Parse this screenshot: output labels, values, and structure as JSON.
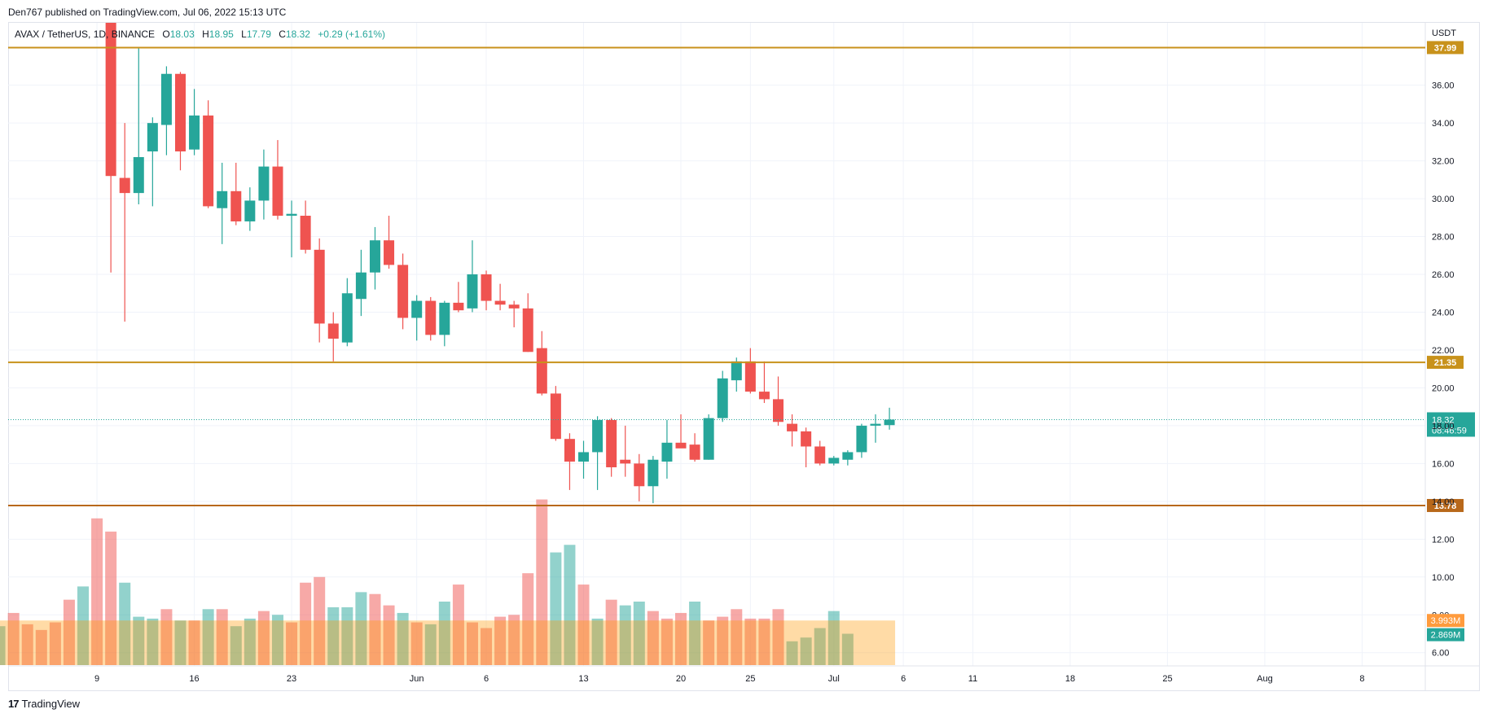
{
  "header": {
    "publisher_text": "Den767 published on TradingView.com, Jul 06, 2022 15:13 UTC"
  },
  "legend": {
    "symbol": "AVAX / TetherUS, 1D, BINANCE",
    "open_label": "O",
    "open": "18.03",
    "high_label": "H",
    "high": "18.95",
    "low_label": "L",
    "low": "17.79",
    "close_label": "C",
    "close": "18.32",
    "change": "+0.29 (+1.61%)"
  },
  "footer": {
    "brand": "TradingView",
    "logo_mark": "17"
  },
  "chart_data": {
    "type": "candlestick",
    "currency": "USDT",
    "ylim": [
      5.3,
      39.3
    ],
    "y_ticks": [
      "6.00",
      "8.00",
      "10.00",
      "12.00",
      "14.00",
      "16.00",
      "18.00",
      "20.00",
      "22.00",
      "24.00",
      "26.00",
      "28.00",
      "30.00",
      "32.00",
      "34.00",
      "36.00"
    ],
    "x_ticks": [
      {
        "label": "9",
        "day": 9
      },
      {
        "label": "16",
        "day": 16
      },
      {
        "label": "23",
        "day": 23
      },
      {
        "label": "Jun",
        "day": 32
      },
      {
        "label": "6",
        "day": 37
      },
      {
        "label": "13",
        "day": 44
      },
      {
        "label": "20",
        "day": 51
      },
      {
        "label": "25",
        "day": 56
      },
      {
        "label": "Jul",
        "day": 62
      },
      {
        "label": "6",
        "day": 67
      },
      {
        "label": "11",
        "day": 72
      },
      {
        "label": "18",
        "day": 79
      },
      {
        "label": "25",
        "day": 86
      },
      {
        "label": "Aug",
        "day": 93
      },
      {
        "label": "8",
        "day": 100
      }
    ],
    "horizontal_levels": [
      {
        "value": 37.99,
        "label": "37.99",
        "color": "#c8921b"
      },
      {
        "value": 21.35,
        "label": "21.35",
        "color": "#c8921b"
      },
      {
        "value": 13.78,
        "label": "13.78",
        "color": "#b8681b"
      }
    ],
    "current_price": {
      "value": 18.32,
      "label": "18.32",
      "countdown": "08:46:59",
      "color": "#26a69a"
    },
    "volume_labels": [
      {
        "label": "3.993M",
        "color": "#ff9b3d",
        "level": 7.7
      },
      {
        "label": "2.869M",
        "color": "#26a69a",
        "level": 6.95
      }
    ],
    "candles": [
      {
        "day": 10,
        "o": 39.3,
        "h": 39.3,
        "l": 26.1,
        "c": 31.2
      },
      {
        "day": 11,
        "o": 31.1,
        "h": 34.0,
        "l": 23.5,
        "c": 30.3
      },
      {
        "day": 12,
        "o": 30.3,
        "h": 38.0,
        "l": 29.7,
        "c": 32.2
      },
      {
        "day": 13,
        "o": 32.5,
        "h": 34.3,
        "l": 29.6,
        "c": 34.0
      },
      {
        "day": 14,
        "o": 33.9,
        "h": 37.0,
        "l": 32.3,
        "c": 36.6
      },
      {
        "day": 15,
        "o": 36.6,
        "h": 36.7,
        "l": 31.5,
        "c": 32.5
      },
      {
        "day": 16,
        "o": 32.6,
        "h": 35.8,
        "l": 32.3,
        "c": 34.4
      },
      {
        "day": 17,
        "o": 34.4,
        "h": 35.2,
        "l": 29.5,
        "c": 29.6
      },
      {
        "day": 18,
        "o": 29.5,
        "h": 31.9,
        "l": 27.6,
        "c": 30.4
      },
      {
        "day": 19,
        "o": 30.4,
        "h": 31.9,
        "l": 28.6,
        "c": 28.8
      },
      {
        "day": 20,
        "o": 28.8,
        "h": 30.6,
        "l": 28.3,
        "c": 29.9
      },
      {
        "day": 21,
        "o": 29.9,
        "h": 32.6,
        "l": 28.9,
        "c": 31.7
      },
      {
        "day": 22,
        "o": 31.7,
        "h": 33.1,
        "l": 28.9,
        "c": 29.1
      },
      {
        "day": 23,
        "o": 29.1,
        "h": 29.9,
        "l": 26.9,
        "c": 29.2
      },
      {
        "day": 24,
        "o": 29.1,
        "h": 29.9,
        "l": 27.1,
        "c": 27.3
      },
      {
        "day": 25,
        "o": 27.3,
        "h": 27.9,
        "l": 22.4,
        "c": 23.4
      },
      {
        "day": 26,
        "o": 23.4,
        "h": 24.0,
        "l": 21.4,
        "c": 22.6
      },
      {
        "day": 27,
        "o": 22.4,
        "h": 25.8,
        "l": 22.2,
        "c": 25.0
      },
      {
        "day": 28,
        "o": 24.7,
        "h": 27.3,
        "l": 23.8,
        "c": 26.1
      },
      {
        "day": 29,
        "o": 26.1,
        "h": 28.5,
        "l": 25.2,
        "c": 27.8
      },
      {
        "day": 30,
        "o": 27.8,
        "h": 29.1,
        "l": 26.3,
        "c": 26.5
      },
      {
        "day": 31,
        "o": 26.5,
        "h": 27.1,
        "l": 23.1,
        "c": 23.7
      },
      {
        "day": 32,
        "o": 23.7,
        "h": 24.9,
        "l": 22.5,
        "c": 24.6
      },
      {
        "day": 33,
        "o": 24.6,
        "h": 24.8,
        "l": 22.5,
        "c": 22.8
      },
      {
        "day": 34,
        "o": 22.8,
        "h": 24.6,
        "l": 22.2,
        "c": 24.5
      },
      {
        "day": 35,
        "o": 24.5,
        "h": 25.6,
        "l": 24.0,
        "c": 24.1
      },
      {
        "day": 36,
        "o": 24.2,
        "h": 27.8,
        "l": 24.0,
        "c": 26.0
      },
      {
        "day": 37,
        "o": 26.0,
        "h": 26.2,
        "l": 24.1,
        "c": 24.6
      },
      {
        "day": 38,
        "o": 24.6,
        "h": 25.5,
        "l": 24.1,
        "c": 24.4
      },
      {
        "day": 39,
        "o": 24.4,
        "h": 24.6,
        "l": 23.2,
        "c": 24.2
      },
      {
        "day": 40,
        "o": 24.2,
        "h": 25.0,
        "l": 21.9,
        "c": 21.9
      },
      {
        "day": 41,
        "o": 22.1,
        "h": 23.0,
        "l": 19.6,
        "c": 19.7
      },
      {
        "day": 42,
        "o": 19.7,
        "h": 20.1,
        "l": 17.2,
        "c": 17.3
      },
      {
        "day": 43,
        "o": 17.3,
        "h": 17.6,
        "l": 14.6,
        "c": 16.1
      },
      {
        "day": 44,
        "o": 16.1,
        "h": 17.2,
        "l": 15.2,
        "c": 16.6
      },
      {
        "day": 45,
        "o": 16.6,
        "h": 18.5,
        "l": 14.6,
        "c": 18.3
      },
      {
        "day": 46,
        "o": 18.3,
        "h": 18.4,
        "l": 15.3,
        "c": 15.8
      },
      {
        "day": 47,
        "o": 16.2,
        "h": 18.0,
        "l": 15.3,
        "c": 16.0
      },
      {
        "day": 48,
        "o": 16.0,
        "h": 16.5,
        "l": 14.0,
        "c": 14.8
      },
      {
        "day": 49,
        "o": 14.8,
        "h": 16.4,
        "l": 13.9,
        "c": 16.2
      },
      {
        "day": 50,
        "o": 16.1,
        "h": 18.3,
        "l": 15.2,
        "c": 17.1
      },
      {
        "day": 51,
        "o": 17.1,
        "h": 18.6,
        "l": 16.9,
        "c": 16.8
      },
      {
        "day": 52,
        "o": 17.0,
        "h": 17.6,
        "l": 16.1,
        "c": 16.2
      },
      {
        "day": 53,
        "o": 16.2,
        "h": 18.6,
        "l": 16.2,
        "c": 18.4
      },
      {
        "day": 54,
        "o": 18.4,
        "h": 20.9,
        "l": 18.2,
        "c": 20.5
      },
      {
        "day": 55,
        "o": 20.4,
        "h": 21.6,
        "l": 19.8,
        "c": 21.4
      },
      {
        "day": 56,
        "o": 21.4,
        "h": 22.1,
        "l": 19.7,
        "c": 19.8
      },
      {
        "day": 57,
        "o": 19.8,
        "h": 21.4,
        "l": 19.2,
        "c": 19.4
      },
      {
        "day": 58,
        "o": 19.4,
        "h": 20.6,
        "l": 18.0,
        "c": 18.2
      },
      {
        "day": 59,
        "o": 18.1,
        "h": 18.6,
        "l": 16.9,
        "c": 17.7
      },
      {
        "day": 60,
        "o": 17.7,
        "h": 17.9,
        "l": 15.8,
        "c": 16.9
      },
      {
        "day": 61,
        "o": 16.9,
        "h": 17.2,
        "l": 15.9,
        "c": 16.0
      },
      {
        "day": 62,
        "o": 16.0,
        "h": 16.4,
        "l": 15.9,
        "c": 16.3
      },
      {
        "day": 63,
        "o": 16.2,
        "h": 16.7,
        "l": 15.9,
        "c": 16.6
      },
      {
        "day": 64,
        "o": 16.6,
        "h": 18.1,
        "l": 16.3,
        "c": 18.0
      },
      {
        "day": 65,
        "o": 18.0,
        "h": 18.6,
        "l": 17.1,
        "c": 18.1
      },
      {
        "day": 66,
        "o": 18.03,
        "h": 18.95,
        "l": 17.79,
        "c": 18.32
      }
    ],
    "volume": [
      {
        "day": 1,
        "v": 7.2,
        "up": false
      },
      {
        "day": 2,
        "v": 7.4,
        "up": true
      },
      {
        "day": 3,
        "v": 8.1,
        "up": false
      },
      {
        "day": 4,
        "v": 7.5,
        "up": false
      },
      {
        "day": 5,
        "v": 7.2,
        "up": false
      },
      {
        "day": 6,
        "v": 7.6,
        "up": false
      },
      {
        "day": 7,
        "v": 8.8,
        "up": false
      },
      {
        "day": 8,
        "v": 9.5,
        "up": true
      },
      {
        "day": 9,
        "v": 13.1,
        "up": false
      },
      {
        "day": 10,
        "v": 12.4,
        "up": false
      },
      {
        "day": 11,
        "v": 9.7,
        "up": true
      },
      {
        "day": 12,
        "v": 7.9,
        "up": true
      },
      {
        "day": 13,
        "v": 7.8,
        "up": true
      },
      {
        "day": 14,
        "v": 8.3,
        "up": false
      },
      {
        "day": 15,
        "v": 7.7,
        "up": true
      },
      {
        "day": 16,
        "v": 7.7,
        "up": false
      },
      {
        "day": 17,
        "v": 8.3,
        "up": true
      },
      {
        "day": 18,
        "v": 8.3,
        "up": false
      },
      {
        "day": 19,
        "v": 7.4,
        "up": true
      },
      {
        "day": 20,
        "v": 7.8,
        "up": true
      },
      {
        "day": 21,
        "v": 8.2,
        "up": false
      },
      {
        "day": 22,
        "v": 8.0,
        "up": true
      },
      {
        "day": 23,
        "v": 7.6,
        "up": false
      },
      {
        "day": 24,
        "v": 9.7,
        "up": false
      },
      {
        "day": 25,
        "v": 10.0,
        "up": false
      },
      {
        "day": 26,
        "v": 8.4,
        "up": true
      },
      {
        "day": 27,
        "v": 8.4,
        "up": true
      },
      {
        "day": 28,
        "v": 9.2,
        "up": true
      },
      {
        "day": 29,
        "v": 9.1,
        "up": false
      },
      {
        "day": 30,
        "v": 8.5,
        "up": false
      },
      {
        "day": 31,
        "v": 8.1,
        "up": true
      },
      {
        "day": 32,
        "v": 7.6,
        "up": false
      },
      {
        "day": 33,
        "v": 7.5,
        "up": true
      },
      {
        "day": 34,
        "v": 8.7,
        "up": true
      },
      {
        "day": 35,
        "v": 9.6,
        "up": false
      },
      {
        "day": 36,
        "v": 7.6,
        "up": false
      },
      {
        "day": 37,
        "v": 7.3,
        "up": false
      },
      {
        "day": 38,
        "v": 7.9,
        "up": false
      },
      {
        "day": 39,
        "v": 8.0,
        "up": false
      },
      {
        "day": 40,
        "v": 10.2,
        "up": false
      },
      {
        "day": 41,
        "v": 14.1,
        "up": false
      },
      {
        "day": 42,
        "v": 11.3,
        "up": true
      },
      {
        "day": 43,
        "v": 11.7,
        "up": true
      },
      {
        "day": 44,
        "v": 9.6,
        "up": false
      },
      {
        "day": 45,
        "v": 7.8,
        "up": true
      },
      {
        "day": 46,
        "v": 8.8,
        "up": false
      },
      {
        "day": 47,
        "v": 8.5,
        "up": true
      },
      {
        "day": 48,
        "v": 8.7,
        "up": true
      },
      {
        "day": 49,
        "v": 8.2,
        "up": false
      },
      {
        "day": 50,
        "v": 7.8,
        "up": false
      },
      {
        "day": 51,
        "v": 8.1,
        "up": false
      },
      {
        "day": 52,
        "v": 8.7,
        "up": true
      },
      {
        "day": 53,
        "v": 7.7,
        "up": false
      },
      {
        "day": 54,
        "v": 7.9,
        "up": false
      },
      {
        "day": 55,
        "v": 8.3,
        "up": false
      },
      {
        "day": 56,
        "v": 7.8,
        "up": false
      },
      {
        "day": 57,
        "v": 7.8,
        "up": false
      },
      {
        "day": 58,
        "v": 8.3,
        "up": false
      },
      {
        "day": 59,
        "v": 6.6,
        "up": true
      },
      {
        "day": 60,
        "v": 6.8,
        "up": true
      },
      {
        "day": 61,
        "v": 7.3,
        "up": true
      },
      {
        "day": 62,
        "v": 8.2,
        "up": true
      },
      {
        "day": 63,
        "v": 7.0,
        "up": true
      }
    ],
    "volume_ma_level": 7.7
  }
}
